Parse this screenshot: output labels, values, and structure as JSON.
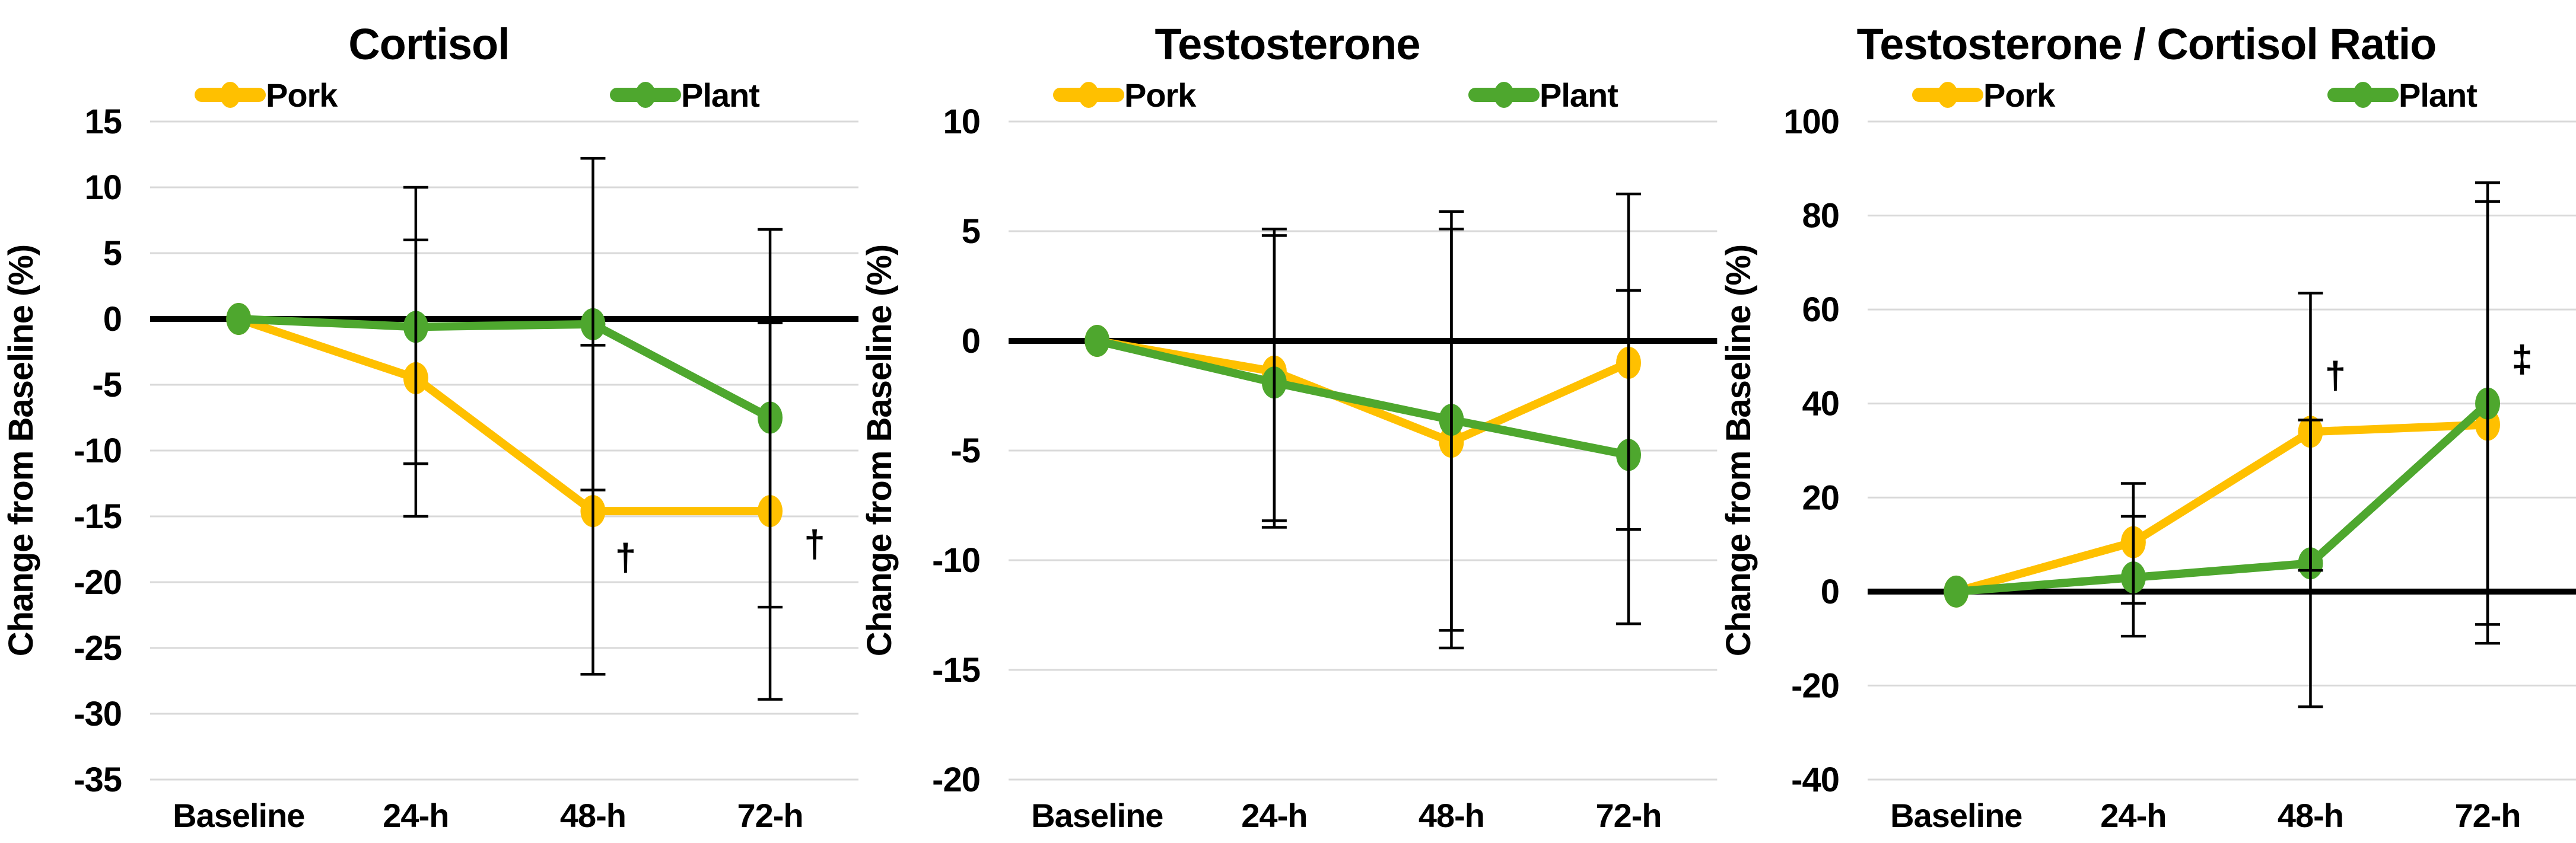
{
  "figure": {
    "background": "#FFFFFF",
    "accent_colors": {
      "pork": "#FFC000",
      "plant": "#4EA72E",
      "gridline": "#D9D9D9",
      "axis": "#000000"
    }
  },
  "chart_data": [
    {
      "type": "line",
      "title": "Cortisol",
      "ylabel": "Change from Baseline (%)",
      "xlabel": "",
      "categories": [
        "Baseline",
        "24-h",
        "48-h",
        "72-h"
      ],
      "ylim": [
        -35,
        15
      ],
      "yticks": [
        15,
        10,
        5,
        0,
        -5,
        -10,
        -15,
        -20,
        -25,
        -30,
        -35
      ],
      "grid": "horizontal",
      "legend_position": "top",
      "zero_line": true,
      "series": [
        {
          "name": "Pork",
          "color": "#FFC000",
          "values": [
            0,
            -4.5,
            -14.6,
            -14.6
          ],
          "err_upper": [
            null,
            6,
            -2,
            -0.3
          ],
          "err_lower": [
            null,
            -15,
            -27,
            -28.9
          ]
        },
        {
          "name": "Plant",
          "color": "#4EA72E",
          "values": [
            0,
            -0.6,
            -0.4,
            -7.5
          ],
          "err_upper": [
            null,
            10,
            12.2,
            6.8
          ],
          "err_lower": [
            null,
            -11,
            -13,
            -21.9
          ]
        }
      ],
      "annotations": [
        {
          "symbol": "†",
          "color": "#FFC000",
          "category": "48-h",
          "value": -18.1,
          "offset_x": 55
        },
        {
          "symbol": "†",
          "color": "#FFC000",
          "category": "72-h",
          "value": -17.1,
          "offset_x": 75
        }
      ]
    },
    {
      "type": "line",
      "title": "Testosterone",
      "ylabel": "Change from Baseline (%)",
      "xlabel": "",
      "categories": [
        "Baseline",
        "24-h",
        "48-h",
        "72-h"
      ],
      "ylim": [
        -20,
        10
      ],
      "yticks": [
        10,
        5,
        0,
        -5,
        -10,
        -15,
        -20
      ],
      "grid": "horizontal",
      "legend_position": "top",
      "zero_line": true,
      "series": [
        {
          "name": "Pork",
          "color": "#FFC000",
          "values": [
            0,
            -1.4,
            -4.6,
            -1.0
          ],
          "err_upper": [
            null,
            5.1,
            5.1,
            6.7
          ],
          "err_lower": [
            null,
            -8.5,
            -14.0,
            -8.6
          ]
        },
        {
          "name": "Plant",
          "color": "#4EA72E",
          "values": [
            0,
            -1.9,
            -3.6,
            -5.2
          ],
          "err_upper": [
            null,
            4.8,
            5.9,
            2.3
          ],
          "err_lower": [
            null,
            -8.2,
            -13.2,
            -12.9
          ]
        }
      ],
      "annotations": []
    },
    {
      "type": "line",
      "title": "Testosterone / Cortisol Ratio",
      "ylabel": "Change from Baseline (%)",
      "xlabel": "",
      "categories": [
        "Baseline",
        "24-h",
        "48-h",
        "72-h"
      ],
      "ylim": [
        -40,
        100
      ],
      "yticks": [
        100,
        80,
        60,
        40,
        20,
        0,
        -20,
        -40
      ],
      "grid": "horizontal",
      "legend_position": "top",
      "zero_line": true,
      "series": [
        {
          "name": "Pork",
          "color": "#FFC000",
          "values": [
            0,
            10.5,
            34,
            35.5
          ],
          "err_upper": [
            null,
            23,
            63.5,
            83
          ],
          "err_lower": [
            null,
            -2.5,
            4.5,
            -11
          ]
        },
        {
          "name": "Plant",
          "color": "#4EA72E",
          "values": [
            0,
            3,
            6,
            40
          ],
          "err_upper": [
            null,
            16,
            36.5,
            87
          ],
          "err_lower": [
            null,
            -9.5,
            -24.5,
            -7
          ]
        }
      ],
      "annotations": [
        {
          "symbol": "†",
          "color": "#FFC000",
          "category": "48-h",
          "value": 46,
          "offset_x": 42
        },
        {
          "symbol": "‡",
          "color": "#4EA72E",
          "category": "72-h",
          "value": 49.5,
          "offset_x": 58
        }
      ]
    }
  ]
}
